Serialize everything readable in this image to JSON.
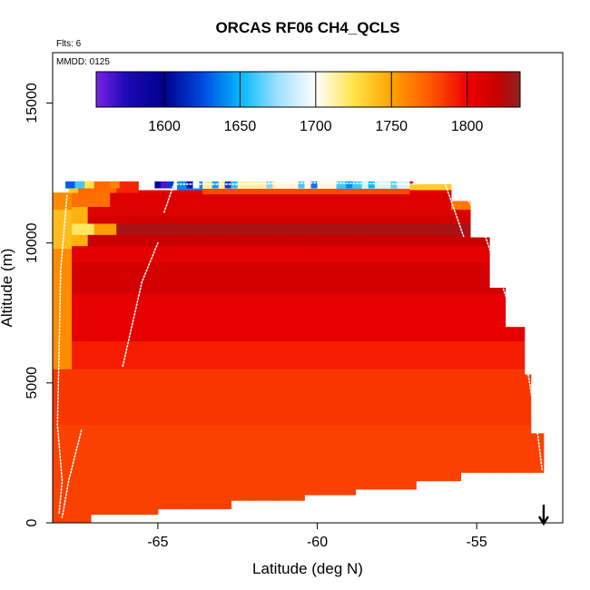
{
  "chart_data": {
    "type": "heatmap",
    "title": "ORCAS RF06 CH4_QCLS",
    "annotations": {
      "flights": "Flts: 6",
      "date": "MMDD: 0125"
    },
    "xlabel": "Latitude (deg N)",
    "ylabel": "Altitude (m)",
    "xlim": [
      -68.3,
      -52.3
    ],
    "ylim": [
      0,
      16800
    ],
    "x_ticks": [
      -65,
      -60,
      -55
    ],
    "x_tick_labels": [
      "-65",
      "-60",
      "-55"
    ],
    "y_ticks": [
      0,
      5000,
      10000,
      15000
    ],
    "y_tick_labels": [
      "0",
      "5000",
      "10000",
      "15000"
    ],
    "colorbar": {
      "range": [
        1555,
        1835
      ],
      "ticks": [
        1600,
        1650,
        1700,
        1750,
        1800
      ],
      "tick_labels": [
        "1600",
        "1650",
        "1700",
        "1750",
        "1800"
      ],
      "stops": [
        {
          "v": 1555,
          "c": "#7a22e6"
        },
        {
          "v": 1575,
          "c": "#1a0ab5"
        },
        {
          "v": 1600,
          "c": "#00008f"
        },
        {
          "v": 1625,
          "c": "#0048e0"
        },
        {
          "v": 1650,
          "c": "#00b8ff"
        },
        {
          "v": 1675,
          "c": "#9fe0ff"
        },
        {
          "v": 1700,
          "c": "#ffffff"
        },
        {
          "v": 1725,
          "c": "#ffe44a"
        },
        {
          "v": 1750,
          "c": "#ffa400"
        },
        {
          "v": 1775,
          "c": "#ff5a00"
        },
        {
          "v": 1800,
          "c": "#f00000"
        },
        {
          "v": 1820,
          "c": "#c80000"
        },
        {
          "v": 1835,
          "c": "#8c2323"
        }
      ]
    },
    "columns": [
      {
        "x0": -68.3,
        "x1": -67.8,
        "top": 11800
      },
      {
        "x0": -67.8,
        "x1": -66.0,
        "top": 12200
      },
      {
        "x0": -66.0,
        "x1": -64.0,
        "top": 12200
      },
      {
        "x0": -64.0,
        "x1": -62.0,
        "top": 12200
      },
      {
        "x0": -62.0,
        "x1": -60.0,
        "top": 12200
      },
      {
        "x0": -60.0,
        "x1": -57.0,
        "top": 12200
      },
      {
        "x0": -57.0,
        "x1": -55.8,
        "top": 12100
      },
      {
        "x0": -55.8,
        "x1": -55.2,
        "top": 11500
      },
      {
        "x0": -55.2,
        "x1": -54.6,
        "top": 10200
      },
      {
        "x0": -54.6,
        "x1": -54.1,
        "top": 8400
      },
      {
        "x0": -54.1,
        "x1": -53.5,
        "top": 7000
      },
      {
        "x0": -53.5,
        "x1": -53.3,
        "top": 5300
      },
      {
        "x0": -53.3,
        "x1": -52.9,
        "top": 3200
      }
    ],
    "bottoms": [
      {
        "x0": -68.3,
        "x1": -67.1,
        "b": 0
      },
      {
        "x0": -67.1,
        "x1": -65.0,
        "b": 300
      },
      {
        "x0": -65.0,
        "x1": -62.7,
        "b": 500
      },
      {
        "x0": -62.7,
        "x1": -60.4,
        "b": 800
      },
      {
        "x0": -60.4,
        "x1": -58.8,
        "b": 1000
      },
      {
        "x0": -58.8,
        "x1": -56.9,
        "b": 1200
      },
      {
        "x0": -56.9,
        "x1": -55.5,
        "b": 1500
      },
      {
        "x0": -55.5,
        "x1": -53.6,
        "b": 1800
      },
      {
        "x0": -53.6,
        "x1": -52.9,
        "b": 1800
      }
    ],
    "layers": [
      {
        "ymin": 0,
        "ymax": 3500,
        "value": 1782
      },
      {
        "ymin": 3500,
        "ymax": 5500,
        "value": 1785
      },
      {
        "ymin": 5500,
        "ymax": 6500,
        "value": 1792
      },
      {
        "ymin": 6500,
        "ymax": 8200,
        "value": 1805
      },
      {
        "ymin": 8200,
        "ymax": 9300,
        "value": 1815
      },
      {
        "ymin": 9300,
        "ymax": 9900,
        "value": 1806
      },
      {
        "ymin": 9900,
        "ymax": 10300,
        "value": 1820
      },
      {
        "ymin": 10300,
        "ymax": 10700,
        "value": 1828
      },
      {
        "ymin": 10700,
        "ymax": 11000,
        "value": 1814
      },
      {
        "ymin": 11000,
        "ymax": 11800,
        "value": 1810
      },
      {
        "ymin": 11800,
        "ymax": 12200,
        "value": 1802
      }
    ],
    "upper_overrides": [
      {
        "x0": -68.3,
        "x1": -67.7,
        "ymin": 5500,
        "ymax": 11800,
        "value": 1758
      },
      {
        "x0": -68.3,
        "x1": -67.7,
        "ymin": 9800,
        "ymax": 11200,
        "value": 1740
      },
      {
        "x0": -67.7,
        "x1": -67.2,
        "ymin": 9900,
        "ymax": 11300,
        "value": 1745
      },
      {
        "x0": -67.7,
        "x1": -67.0,
        "ymin": 10300,
        "ymax": 10700,
        "value": 1722
      },
      {
        "x0": -67.0,
        "x1": -66.3,
        "ymin": 10300,
        "ymax": 10700,
        "value": 1752
      },
      {
        "x0": -67.7,
        "x1": -66.5,
        "ymin": 11300,
        "ymax": 11800,
        "value": 1768
      },
      {
        "x0": -68.3,
        "x1": -67.5,
        "ymin": 11800,
        "ymax": 12200,
        "value": 1735
      },
      {
        "x0": -67.5,
        "x1": -66.3,
        "ymin": 11800,
        "ymax": 12200,
        "value": 1770
      },
      {
        "x0": -66.3,
        "x1": -65.6,
        "ymin": 11800,
        "ymax": 12200,
        "value": 1790
      },
      {
        "x0": -65.6,
        "x1": -64.4,
        "ymin": 11900,
        "ymax": 12200,
        "value": 1700
      },
      {
        "x0": -64.4,
        "x1": -63.6,
        "ymin": 11900,
        "ymax": 12200,
        "value": 1640
      },
      {
        "x0": -63.6,
        "x1": -61.3,
        "ymin": 11950,
        "ymax": 12200,
        "value": 1712
      },
      {
        "x0": -61.3,
        "x1": -59.4,
        "ymin": 11950,
        "ymax": 12200,
        "value": 1705
      },
      {
        "x0": -59.4,
        "x1": -58.6,
        "ymin": 11950,
        "ymax": 12200,
        "value": 1660
      },
      {
        "x0": -58.6,
        "x1": -57.1,
        "ymin": 11950,
        "ymax": 12200,
        "value": 1690
      },
      {
        "x0": -57.1,
        "x1": -55.8,
        "ymin": 11900,
        "ymax": 12100,
        "value": 1735
      },
      {
        "x0": -55.8,
        "x1": -55.2,
        "ymin": 11200,
        "ymax": 11500,
        "value": 1765
      },
      {
        "x0": -63.6,
        "x1": -57.1,
        "ymin": 11750,
        "ymax": 11950,
        "value": 1780
      }
    ],
    "top_noise_cells": [
      {
        "x0": -67.9,
        "x1": -67.6,
        "value": 1630
      },
      {
        "x0": -67.6,
        "x1": -67.3,
        "value": 1660
      },
      {
        "x0": -67.3,
        "x1": -67.0,
        "value": 1725
      },
      {
        "x0": -66.5,
        "x1": -66.2,
        "value": 1760
      },
      {
        "x0": -65.1,
        "x1": -64.9,
        "value": 1590
      },
      {
        "x0": -64.9,
        "x1": -64.7,
        "value": 1565
      },
      {
        "x0": -64.7,
        "x1": -64.5,
        "value": 1620
      },
      {
        "x0": -64.3,
        "x1": -64.1,
        "value": 1640
      },
      {
        "x0": -64.1,
        "x1": -63.9,
        "value": 1575
      },
      {
        "x0": -63.9,
        "x1": -63.7,
        "value": 1700
      },
      {
        "x0": -63.3,
        "x1": -63.1,
        "value": 1645
      },
      {
        "x0": -62.9,
        "x1": -62.7,
        "value": 1620
      },
      {
        "x0": -62.7,
        "x1": -62.5,
        "value": 1655
      },
      {
        "x0": -61.6,
        "x1": -61.4,
        "value": 1670
      },
      {
        "x0": -60.6,
        "x1": -60.4,
        "value": 1660
      },
      {
        "x0": -60.2,
        "x1": -60.0,
        "value": 1635
      },
      {
        "x0": -59.1,
        "x1": -58.9,
        "value": 1640
      },
      {
        "x0": -58.4,
        "x1": -58.2,
        "value": 1650
      },
      {
        "x0": -57.7,
        "x1": -57.5,
        "value": 1665
      }
    ],
    "flight_tracks": [
      {
        "name": "track-1",
        "points": [
          [
            -67.85,
            11700
          ],
          [
            -68.05,
            9000
          ],
          [
            -68.1,
            6000
          ],
          [
            -68.15,
            3500
          ],
          [
            -68.0,
            1500
          ],
          [
            -68.1,
            300
          ]
        ]
      },
      {
        "name": "track-2",
        "points": [
          [
            -66.1,
            5600
          ],
          [
            -65.5,
            8600
          ],
          [
            -65.0,
            10000
          ]
        ]
      },
      {
        "name": "track-3",
        "points": [
          [
            -64.8,
            11100
          ],
          [
            -64.5,
            12100
          ],
          [
            -62.5,
            12100
          ],
          [
            -60.0,
            12150
          ],
          [
            -57.2,
            12100
          ],
          [
            -56.0,
            12150
          ],
          [
            -55.4,
            10200
          ]
        ]
      },
      {
        "name": "track-4",
        "points": [
          [
            -55.5,
            12000
          ],
          [
            -54.9,
            10800
          ],
          [
            -54.3,
            8800
          ],
          [
            -53.9,
            7500
          ]
        ]
      },
      {
        "name": "track-5",
        "points": [
          [
            -53.4,
            5400
          ],
          [
            -53.1,
            3300
          ],
          [
            -52.95,
            1900
          ]
        ]
      },
      {
        "name": "track-6",
        "points": [
          [
            -67.4,
            3300
          ],
          [
            -67.8,
            1500
          ],
          [
            -68.0,
            200
          ]
        ]
      }
    ],
    "marker": {
      "type": "arrow-down",
      "x": -52.9
    }
  }
}
